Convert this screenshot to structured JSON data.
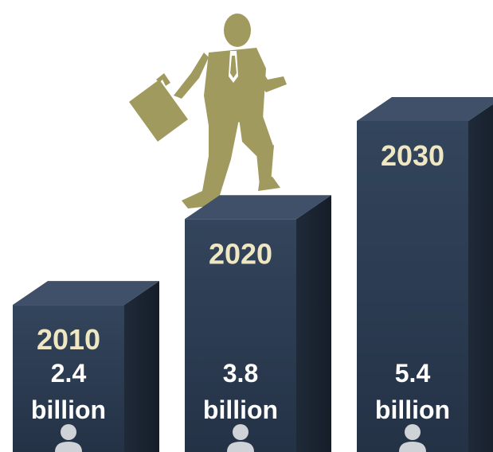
{
  "chart_data": {
    "type": "bar",
    "title": "",
    "xlabel": "",
    "ylabel": "",
    "categories": [
      "2010",
      "2020",
      "2030"
    ],
    "values": [
      2.4,
      3.8,
      5.4
    ],
    "value_labels": [
      {
        "number": "2.4",
        "unit": "billion"
      },
      {
        "number": "3.8",
        "unit": "billion"
      },
      {
        "number": "5.4",
        "unit": "billion"
      }
    ],
    "ylim": [
      0,
      6
    ],
    "grid": false,
    "style": "3d-column",
    "colors": {
      "bar_front": "#2b3a4e",
      "bar_top": "#3f5068",
      "bar_side": "#1a2432",
      "year_label": "#efe6c2",
      "value_label": "#ffffff",
      "figure": "#a19a5f",
      "person_icon": "#cfd3d8"
    },
    "icons": [
      "person-icon",
      "climbing-businessman-icon"
    ]
  }
}
